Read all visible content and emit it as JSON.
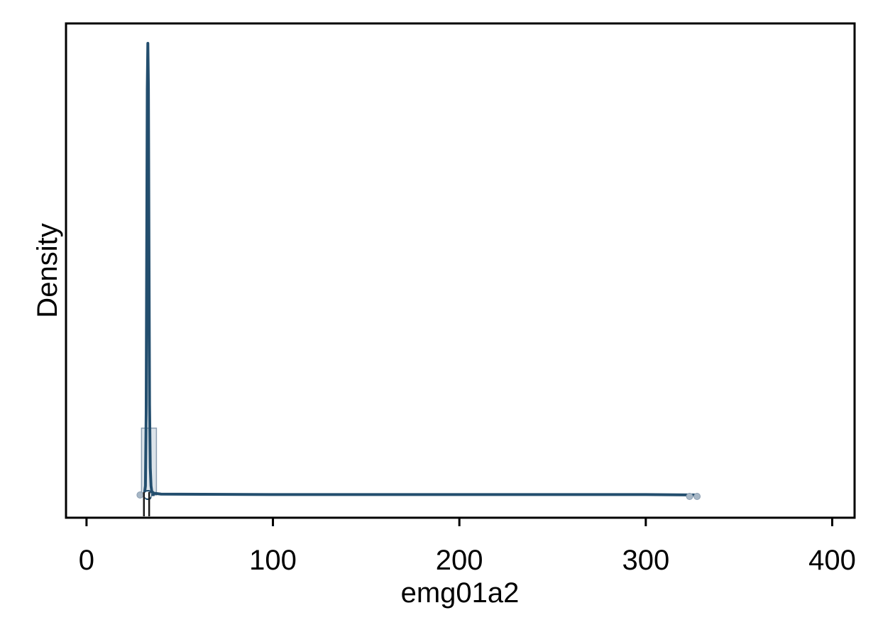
{
  "chart_data": {
    "type": "area",
    "title": "",
    "xlabel": "emg01a2",
    "ylabel": "Density",
    "xlim": [
      -11,
      412
    ],
    "ylim": [
      0,
      1
    ],
    "x_ticks": [
      0,
      100,
      200,
      300,
      400
    ],
    "x_tick_labels": [
      "0",
      "100",
      "200",
      "300",
      "400"
    ],
    "y_ticks": [],
    "grid": false,
    "legend": "none",
    "colors": {
      "line": "#234e6e",
      "fill": "#b4c3d1",
      "box": "#8c9fb2",
      "outlier": "#a7b7c6",
      "frame": "#000000"
    },
    "density_curve": {
      "x": [
        31.0,
        31.6,
        32.0,
        32.3,
        32.6,
        32.9,
        33.2,
        33.5,
        33.8,
        34.2,
        34.6,
        35.0,
        36.0,
        40.0,
        100.0,
        200.0,
        300.0,
        328.0
      ],
      "y": [
        0.0,
        0.02,
        0.18,
        0.55,
        0.9,
        1.0,
        0.9,
        0.55,
        0.2,
        0.06,
        0.02,
        0.008,
        0.004,
        0.002,
        0.001,
        0.001,
        0.001,
        0.0
      ]
    },
    "histogram": {
      "bins": [
        [
          29.5,
          37.5
        ]
      ],
      "heights": [
        0.148
      ]
    },
    "boxplot": {
      "whisker_low": 29.5,
      "q1": 31.5,
      "median": 32.8,
      "q3": 34.5,
      "whisker_high": 36.5,
      "outliers": [
        323.5,
        327.5
      ]
    },
    "rug": [
      30.8,
      33.6
    ]
  }
}
